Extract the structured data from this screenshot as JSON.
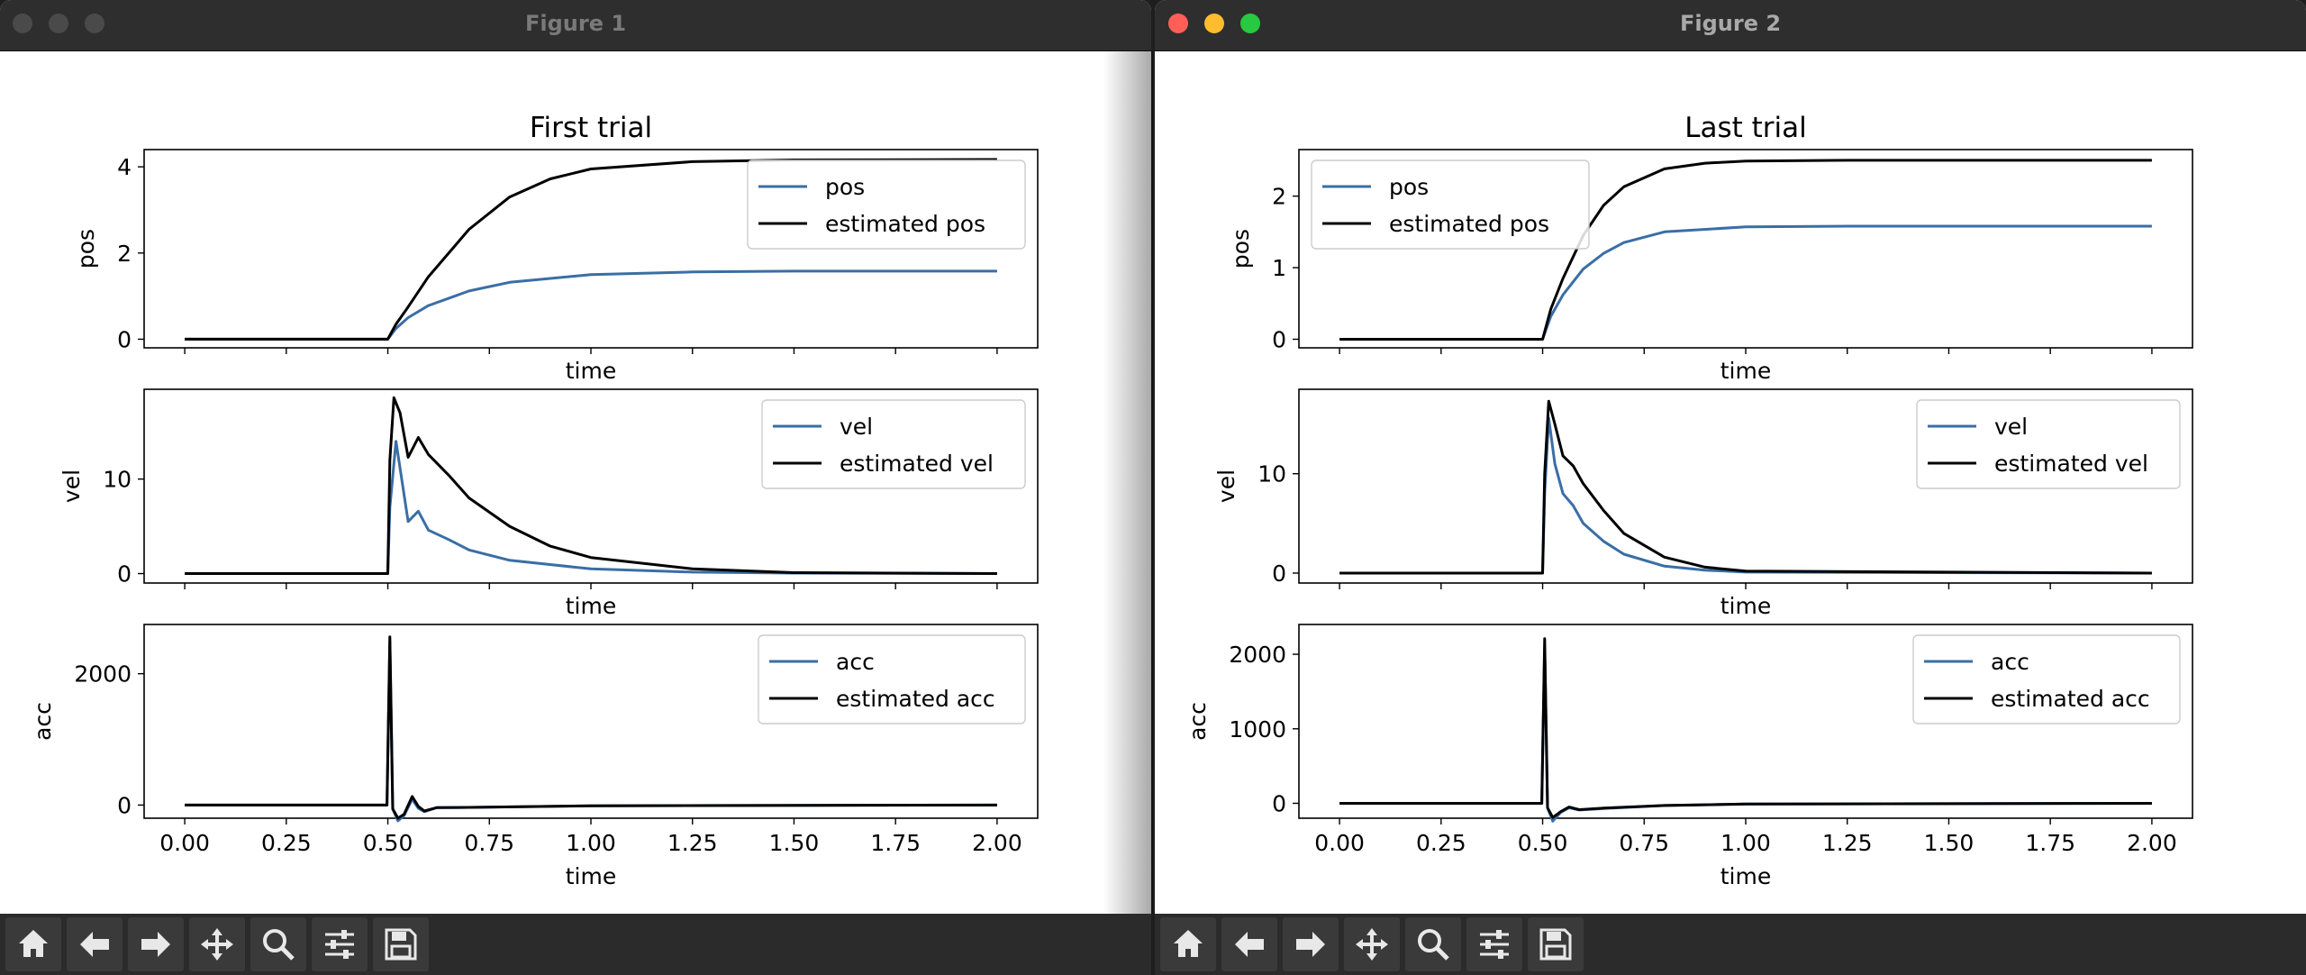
{
  "windows": [
    {
      "title": "Figure 1",
      "active": false,
      "chart_title": "First trial",
      "subplots": [
        {
          "ylabel": "pos",
          "xlabel": "time",
          "yticks": [
            0,
            2,
            4
          ],
          "ylim": [
            -0.2,
            4.4
          ],
          "legend": [
            "pos",
            "estimated pos"
          ],
          "legend_loc": "upper right"
        },
        {
          "ylabel": "vel",
          "xlabel": "time",
          "yticks": [
            0,
            10
          ],
          "ylim": [
            -1,
            19.5
          ],
          "legend": [
            "vel",
            "estimated vel"
          ],
          "legend_loc": "upper right"
        },
        {
          "ylabel": "acc",
          "xlabel": "time",
          "yticks": [
            0,
            2000
          ],
          "ylim": [
            -200,
            2750
          ],
          "legend": [
            "acc",
            "estimated acc"
          ],
          "legend_loc": "upper right"
        }
      ]
    },
    {
      "title": "Figure 2",
      "active": true,
      "chart_title": "Last trial",
      "subplots": [
        {
          "ylabel": "pos",
          "xlabel": "time",
          "yticks": [
            0,
            1,
            2
          ],
          "ylim": [
            -0.12,
            2.65
          ],
          "legend": [
            "pos",
            "estimated pos"
          ],
          "legend_loc": "upper left"
        },
        {
          "ylabel": "vel",
          "xlabel": "time",
          "yticks": [
            0,
            10
          ],
          "ylim": [
            -1,
            18.5
          ],
          "legend": [
            "vel",
            "estimated vel"
          ],
          "legend_loc": "upper right"
        },
        {
          "ylabel": "acc",
          "xlabel": "time",
          "yticks": [
            0,
            1000,
            2000
          ],
          "ylim": [
            -200,
            2400
          ],
          "legend": [
            "acc",
            "estimated acc"
          ],
          "legend_loc": "upper right"
        }
      ]
    }
  ],
  "x_ticks": [
    "0.00",
    "0.25",
    "0.50",
    "0.75",
    "1.00",
    "1.25",
    "1.50",
    "1.75",
    "2.00"
  ],
  "x_tick_values": [
    0,
    0.25,
    0.5,
    0.75,
    1.0,
    1.25,
    1.5,
    1.75,
    2.0
  ],
  "colors": {
    "measured": "#3a6ea5",
    "estimated": "#000000",
    "close": "#ff5f57",
    "minimize": "#febc2e",
    "zoom": "#28c840",
    "inactive": "#4a4a4a"
  },
  "toolbar_icons": [
    "home-icon",
    "back-arrow-icon",
    "forward-arrow-icon",
    "pan-move-icon",
    "zoom-magnifier-icon",
    "configure-subplots-icon",
    "save-icon"
  ],
  "chart_data": [
    {
      "type": "line",
      "title": "First trial",
      "subplots": [
        {
          "ylabel": "pos",
          "xlabel": "time",
          "xlim": [
            0,
            2
          ],
          "ylim": [
            -0.2,
            4.4
          ],
          "series": [
            {
              "name": "pos",
              "x": [
                0,
                0.5,
                0.52,
                0.55,
                0.6,
                0.7,
                0.8,
                1.0,
                1.25,
                1.5,
                2.0
              ],
              "y": [
                0,
                0,
                0.25,
                0.5,
                0.78,
                1.12,
                1.32,
                1.5,
                1.56,
                1.58,
                1.58
              ]
            },
            {
              "name": "estimated pos",
              "x": [
                0,
                0.5,
                0.52,
                0.55,
                0.6,
                0.7,
                0.8,
                0.9,
                1.0,
                1.25,
                1.5,
                2.0
              ],
              "y": [
                0,
                0,
                0.35,
                0.75,
                1.45,
                2.55,
                3.3,
                3.72,
                3.95,
                4.12,
                4.16,
                4.17
              ]
            }
          ]
        },
        {
          "ylabel": "vel",
          "xlabel": "time",
          "xlim": [
            0,
            2
          ],
          "ylim": [
            -1,
            19.5
          ],
          "series": [
            {
              "name": "vel",
              "x": [
                0,
                0.5,
                0.505,
                0.52,
                0.55,
                0.575,
                0.6,
                0.65,
                0.7,
                0.8,
                1.0,
                1.25,
                1.5,
                2.0
              ],
              "y": [
                0,
                0,
                7,
                14,
                5.5,
                6.6,
                4.6,
                3.6,
                2.5,
                1.4,
                0.5,
                0.15,
                0.05,
                0
              ]
            },
            {
              "name": "estimated vel",
              "x": [
                0,
                0.5,
                0.505,
                0.515,
                0.53,
                0.55,
                0.575,
                0.6,
                0.65,
                0.7,
                0.8,
                0.9,
                1.0,
                1.25,
                1.5,
                2.0
              ],
              "y": [
                0,
                0,
                12,
                18.6,
                17.0,
                12.3,
                14.4,
                12.6,
                10.4,
                8.0,
                5.0,
                2.9,
                1.7,
                0.5,
                0.1,
                0
              ]
            }
          ]
        },
        {
          "ylabel": "acc",
          "xlabel": "time",
          "xlim": [
            0,
            2
          ],
          "ylim": [
            -200,
            2750
          ],
          "series": [
            {
              "name": "acc",
              "x": [
                0,
                0.498,
                0.505,
                0.512,
                0.525,
                0.54,
                0.56,
                0.575,
                0.59,
                0.62,
                0.7,
                1.0,
                2.0
              ],
              "y": [
                0,
                0,
                2500,
                -60,
                -240,
                -160,
                90,
                -50,
                -100,
                -40,
                -35,
                -10,
                0
              ]
            },
            {
              "name": "estimated acc",
              "x": [
                0,
                0.498,
                0.505,
                0.512,
                0.525,
                0.54,
                0.56,
                0.575,
                0.59,
                0.62,
                0.7,
                1.0,
                2.0
              ],
              "y": [
                0,
                0,
                2560,
                -60,
                -200,
                -140,
                130,
                -20,
                -90,
                -40,
                -35,
                -10,
                0
              ]
            }
          ]
        }
      ]
    },
    {
      "type": "line",
      "title": "Last trial",
      "subplots": [
        {
          "ylabel": "pos",
          "xlabel": "time",
          "xlim": [
            0,
            2
          ],
          "ylim": [
            -0.12,
            2.65
          ],
          "series": [
            {
              "name": "pos",
              "x": [
                0,
                0.5,
                0.52,
                0.55,
                0.6,
                0.65,
                0.7,
                0.8,
                1.0,
                1.25,
                2.0
              ],
              "y": [
                0,
                0,
                0.32,
                0.62,
                0.98,
                1.2,
                1.35,
                1.5,
                1.57,
                1.58,
                1.58
              ]
            },
            {
              "name": "estimated pos",
              "x": [
                0,
                0.5,
                0.52,
                0.55,
                0.6,
                0.65,
                0.7,
                0.8,
                0.9,
                1.0,
                1.25,
                2.0
              ],
              "y": [
                0,
                0,
                0.42,
                0.85,
                1.45,
                1.87,
                2.13,
                2.38,
                2.46,
                2.49,
                2.5,
                2.5
              ]
            }
          ]
        },
        {
          "ylabel": "vel",
          "xlabel": "time",
          "xlim": [
            0,
            2
          ],
          "ylim": [
            -1,
            18.5
          ],
          "series": [
            {
              "name": "vel",
              "x": [
                0,
                0.5,
                0.505,
                0.515,
                0.53,
                0.55,
                0.575,
                0.6,
                0.65,
                0.7,
                0.8,
                0.9,
                1.0,
                2.0
              ],
              "y": [
                0,
                0,
                8,
                15.6,
                11.0,
                8.0,
                6.8,
                5.0,
                3.2,
                1.9,
                0.7,
                0.3,
                0.1,
                0
              ]
            },
            {
              "name": "estimated vel",
              "x": [
                0,
                0.5,
                0.505,
                0.515,
                0.53,
                0.55,
                0.575,
                0.6,
                0.65,
                0.7,
                0.8,
                0.9,
                1.0,
                2.0
              ],
              "y": [
                0,
                0,
                10,
                17.3,
                15.0,
                11.8,
                10.8,
                9.0,
                6.3,
                4.0,
                1.6,
                0.6,
                0.2,
                0
              ]
            }
          ]
        },
        {
          "ylabel": "acc",
          "xlabel": "time",
          "xlim": [
            0,
            2
          ],
          "ylim": [
            -200,
            2400
          ],
          "series": [
            {
              "name": "acc",
              "x": [
                0,
                0.498,
                0.505,
                0.512,
                0.525,
                0.545,
                0.565,
                0.59,
                0.65,
                0.8,
                1.0,
                2.0
              ],
              "y": [
                0,
                0,
                2100,
                -60,
                -240,
                -120,
                -60,
                -90,
                -70,
                -30,
                -10,
                0
              ]
            },
            {
              "name": "estimated acc",
              "x": [
                0,
                0.498,
                0.505,
                0.512,
                0.525,
                0.545,
                0.565,
                0.59,
                0.65,
                0.8,
                1.0,
                2.0
              ],
              "y": [
                0,
                0,
                2210,
                -60,
                -190,
                -110,
                -50,
                -85,
                -65,
                -30,
                -10,
                0
              ]
            }
          ]
        }
      ]
    }
  ]
}
